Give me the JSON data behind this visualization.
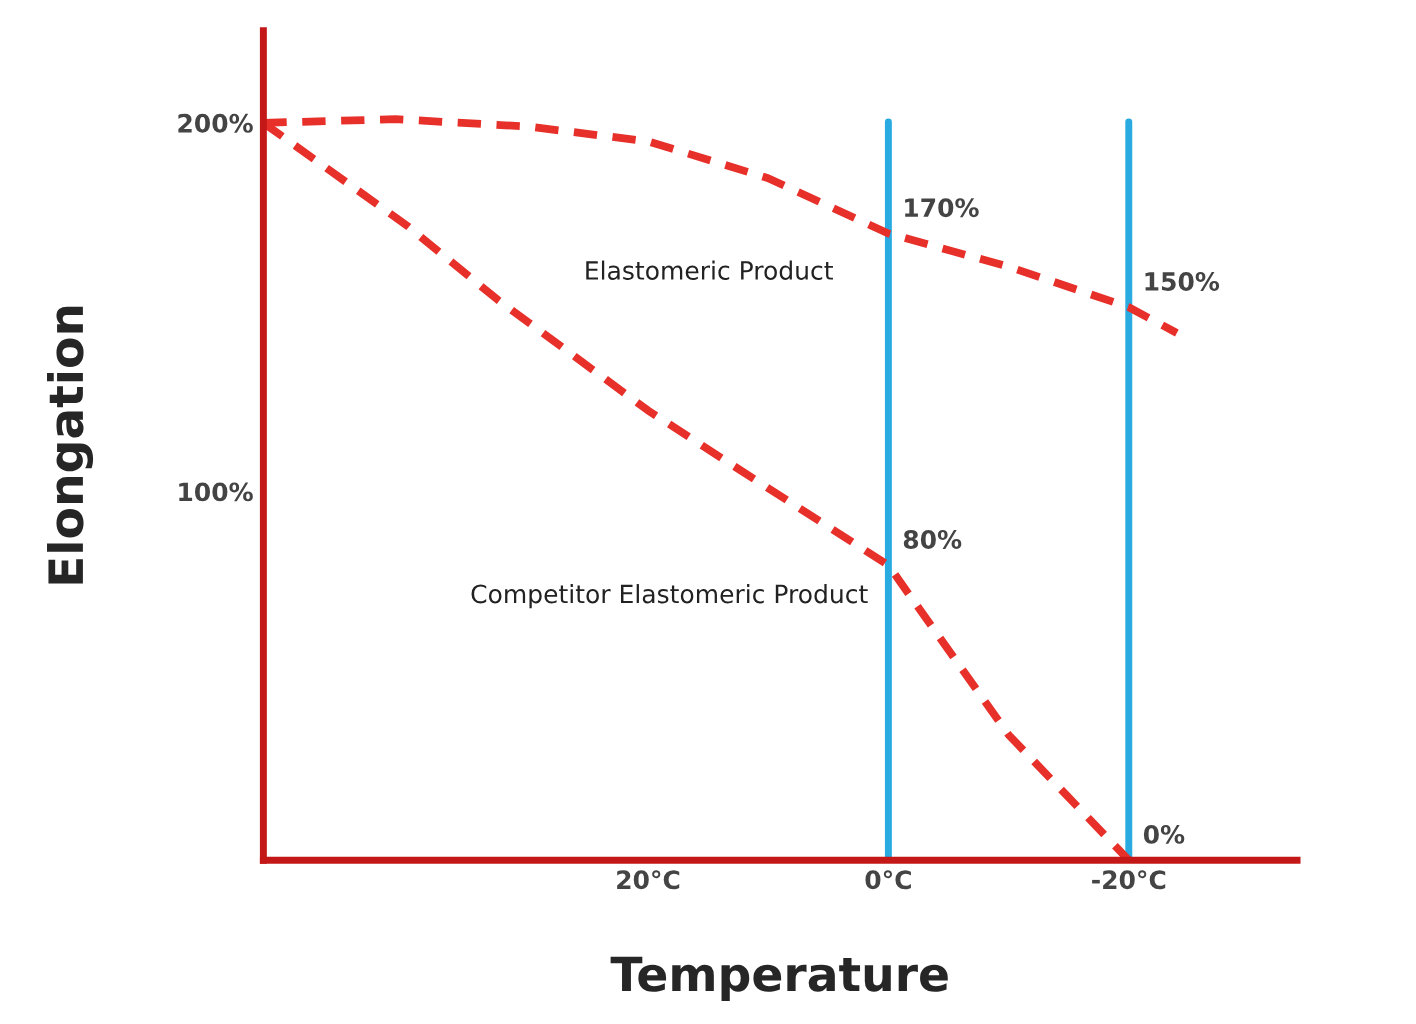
{
  "chart_data": {
    "type": "line",
    "xlabel": "Temperature",
    "ylabel": "Elongation",
    "xlim": [
      52,
      -34
    ],
    "ylim": [
      0,
      225
    ],
    "xticks": [
      {
        "value": 20,
        "label": "20°C"
      },
      {
        "value": 0,
        "label": "0°C"
      },
      {
        "value": -20,
        "label": "-20°C"
      }
    ],
    "yticks": [
      {
        "value": 100,
        "label": "100%"
      },
      {
        "value": 200,
        "label": "200%"
      }
    ],
    "line_style": "dashed",
    "marker": "none",
    "grid": false,
    "legend": false,
    "series": [
      {
        "name": "Elastomeric Product",
        "color": "#e8302a",
        "x": [
          52,
          41,
          30,
          20,
          10,
          0,
          -10,
          -20,
          -24
        ],
        "values": [
          200,
          201,
          199,
          195,
          185,
          170,
          161,
          150,
          143
        ],
        "value_labels": [
          null,
          null,
          null,
          null,
          null,
          "170%",
          null,
          "150%",
          null
        ]
      },
      {
        "name": "Competitor Elastomeric Product",
        "color": "#e8302a",
        "x": [
          52,
          40,
          32.5,
          20,
          11,
          0,
          -10,
          -20
        ],
        "values": [
          200,
          172,
          152,
          122,
          103,
          80,
          34,
          0
        ],
        "value_labels": [
          null,
          null,
          null,
          null,
          null,
          "80%",
          null,
          "0%"
        ]
      }
    ],
    "ref_lines": [
      {
        "axis": "x",
        "value": 0,
        "label": null,
        "color": "#29abe2"
      },
      {
        "axis": "x",
        "value": -20,
        "label": null,
        "color": "#29abe2"
      }
    ]
  }
}
